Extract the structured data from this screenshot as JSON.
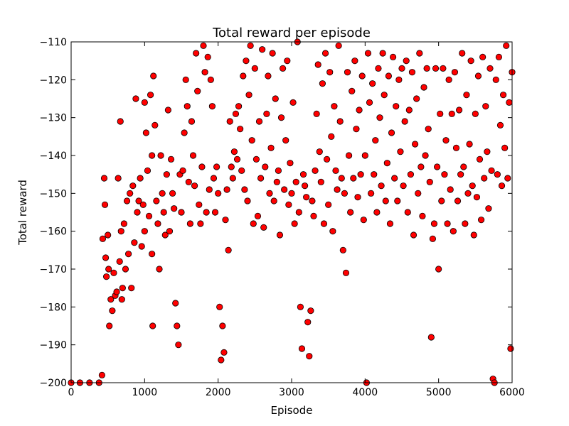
{
  "chart_data": {
    "type": "scatter",
    "title": "Total reward per episode",
    "xlabel": "Episode",
    "ylabel": "Total reward",
    "xlim": [
      0,
      6000
    ],
    "ylim": [
      -200,
      -110
    ],
    "xticks": [
      0,
      1000,
      2000,
      3000,
      4000,
      5000,
      6000
    ],
    "xtick_labels": [
      "0",
      "1000",
      "2000",
      "3000",
      "4000",
      "5000",
      "6000"
    ],
    "yticks": [
      -200,
      -190,
      -180,
      -170,
      -160,
      -150,
      -140,
      -130,
      -120,
      -110
    ],
    "ytick_labels": [
      "−200",
      "−190",
      "−180",
      "−170",
      "−160",
      "−150",
      "−140",
      "−130",
      "−120",
      "−110"
    ],
    "grid": false,
    "marker": "circle",
    "marker_color": "#ff0000",
    "marker_edge_color": "#000000",
    "series": [
      {
        "points": [
          [
            0,
            -200
          ],
          [
            120,
            -200
          ],
          [
            250,
            -200
          ],
          [
            380,
            -200
          ],
          [
            420,
            -198
          ],
          [
            430,
            -162
          ],
          [
            450,
            -146
          ],
          [
            460,
            -153
          ],
          [
            470,
            -167
          ],
          [
            480,
            -172
          ],
          [
            500,
            -161
          ],
          [
            510,
            -170
          ],
          [
            520,
            -185
          ],
          [
            540,
            -178
          ],
          [
            560,
            -181
          ],
          [
            580,
            -171
          ],
          [
            600,
            -177
          ],
          [
            620,
            -176
          ],
          [
            640,
            -146
          ],
          [
            660,
            -168
          ],
          [
            670,
            -131
          ],
          [
            680,
            -160
          ],
          [
            690,
            -178
          ],
          [
            700,
            -175
          ],
          [
            720,
            -158
          ],
          [
            740,
            -170
          ],
          [
            760,
            -152
          ],
          [
            780,
            -166
          ],
          [
            800,
            -150
          ],
          [
            820,
            -175
          ],
          [
            840,
            -148
          ],
          [
            860,
            -163
          ],
          [
            880,
            -125
          ],
          [
            900,
            -155
          ],
          [
            920,
            -152
          ],
          [
            940,
            -146
          ],
          [
            960,
            -164
          ],
          [
            980,
            -153
          ],
          [
            1000,
            -160
          ],
          [
            1000,
            -126
          ],
          [
            1020,
            -134
          ],
          [
            1040,
            -144
          ],
          [
            1060,
            -156
          ],
          [
            1080,
            -124
          ],
          [
            1100,
            -166
          ],
          [
            1100,
            -140
          ],
          [
            1110,
            -185
          ],
          [
            1120,
            -119
          ],
          [
            1140,
            -132
          ],
          [
            1160,
            -152
          ],
          [
            1180,
            -158
          ],
          [
            1200,
            -170
          ],
          [
            1220,
            -140
          ],
          [
            1240,
            -150
          ],
          [
            1260,
            -155
          ],
          [
            1280,
            -161
          ],
          [
            1300,
            -145
          ],
          [
            1320,
            -128
          ],
          [
            1340,
            -160
          ],
          [
            1360,
            -141
          ],
          [
            1380,
            -150
          ],
          [
            1400,
            -154
          ],
          [
            1420,
            -179
          ],
          [
            1440,
            -185
          ],
          [
            1460,
            -190
          ],
          [
            1480,
            -145
          ],
          [
            1500,
            -155
          ],
          [
            1520,
            -144
          ],
          [
            1540,
            -134
          ],
          [
            1560,
            -120
          ],
          [
            1580,
            -127
          ],
          [
            1600,
            -147
          ],
          [
            1620,
            -158
          ],
          [
            1640,
            -131
          ],
          [
            1660,
            -140
          ],
          [
            1680,
            -148
          ],
          [
            1700,
            -113
          ],
          [
            1720,
            -123
          ],
          [
            1740,
            -153
          ],
          [
            1760,
            -158
          ],
          [
            1780,
            -143
          ],
          [
            1800,
            -111
          ],
          [
            1820,
            -118
          ],
          [
            1840,
            -155
          ],
          [
            1860,
            -114
          ],
          [
            1880,
            -149
          ],
          [
            1900,
            -120
          ],
          [
            1920,
            -127
          ],
          [
            1940,
            -146
          ],
          [
            1960,
            -155
          ],
          [
            1980,
            -143
          ],
          [
            2000,
            -150
          ],
          [
            2020,
            -180
          ],
          [
            2040,
            -194
          ],
          [
            2060,
            -185
          ],
          [
            2080,
            -192
          ],
          [
            2100,
            -157
          ],
          [
            2120,
            -149
          ],
          [
            2140,
            -165
          ],
          [
            2160,
            -131
          ],
          [
            2180,
            -143
          ],
          [
            2200,
            -146
          ],
          [
            2220,
            -139
          ],
          [
            2240,
            -129
          ],
          [
            2260,
            -141
          ],
          [
            2280,
            -127
          ],
          [
            2300,
            -133
          ],
          [
            2320,
            -144
          ],
          [
            2340,
            -119
          ],
          [
            2360,
            -149
          ],
          [
            2380,
            -115
          ],
          [
            2400,
            -152
          ],
          [
            2420,
            -124
          ],
          [
            2440,
            -111
          ],
          [
            2460,
            -136
          ],
          [
            2480,
            -158
          ],
          [
            2500,
            -117
          ],
          [
            2520,
            -141
          ],
          [
            2540,
            -156
          ],
          [
            2560,
            -131
          ],
          [
            2580,
            -146
          ],
          [
            2600,
            -112
          ],
          [
            2620,
            -159
          ],
          [
            2640,
            -143
          ],
          [
            2660,
            -129
          ],
          [
            2680,
            -119
          ],
          [
            2700,
            -150
          ],
          [
            2720,
            -138
          ],
          [
            2740,
            -113
          ],
          [
            2760,
            -152
          ],
          [
            2780,
            -125
          ],
          [
            2800,
            -147
          ],
          [
            2820,
            -144
          ],
          [
            2840,
            -161
          ],
          [
            2860,
            -130
          ],
          [
            2880,
            -117
          ],
          [
            2900,
            -149
          ],
          [
            2920,
            -136
          ],
          [
            2940,
            -115
          ],
          [
            2960,
            -153
          ],
          [
            2980,
            -142
          ],
          [
            3000,
            -150
          ],
          [
            3020,
            -126
          ],
          [
            3040,
            -158
          ],
          [
            3060,
            -147
          ],
          [
            3080,
            -110
          ],
          [
            3100,
            -155
          ],
          [
            3120,
            -180
          ],
          [
            3140,
            -191
          ],
          [
            3160,
            -145
          ],
          [
            3180,
            -148
          ],
          [
            3200,
            -151
          ],
          [
            3220,
            -184
          ],
          [
            3240,
            -193
          ],
          [
            3260,
            -181
          ],
          [
            3280,
            -152
          ],
          [
            3300,
            -156
          ],
          [
            3320,
            -144
          ],
          [
            3340,
            -129
          ],
          [
            3360,
            -116
          ],
          [
            3380,
            -139
          ],
          [
            3400,
            -147
          ],
          [
            3420,
            -121
          ],
          [
            3440,
            -158
          ],
          [
            3460,
            -113
          ],
          [
            3480,
            -141
          ],
          [
            3500,
            -153
          ],
          [
            3520,
            -118
          ],
          [
            3540,
            -135
          ],
          [
            3560,
            -160
          ],
          [
            3580,
            -127
          ],
          [
            3600,
            -144
          ],
          [
            3620,
            -149
          ],
          [
            3640,
            -111
          ],
          [
            3660,
            -131
          ],
          [
            3680,
            -146
          ],
          [
            3700,
            -165
          ],
          [
            3720,
            -150
          ],
          [
            3740,
            -171
          ],
          [
            3760,
            -118
          ],
          [
            3780,
            -140
          ],
          [
            3800,
            -155
          ],
          [
            3820,
            -123
          ],
          [
            3840,
            -146
          ],
          [
            3860,
            -115
          ],
          [
            3880,
            -133
          ],
          [
            3900,
            -151
          ],
          [
            3920,
            -128
          ],
          [
            3940,
            -145
          ],
          [
            3960,
            -119
          ],
          [
            3980,
            -157
          ],
          [
            4000,
            -140
          ],
          [
            4020,
            -200
          ],
          [
            4040,
            -113
          ],
          [
            4060,
            -126
          ],
          [
            4080,
            -150
          ],
          [
            4100,
            -121
          ],
          [
            4120,
            -145
          ],
          [
            4140,
            -136
          ],
          [
            4160,
            -155
          ],
          [
            4180,
            -117
          ],
          [
            4200,
            -130
          ],
          [
            4220,
            -148
          ],
          [
            4240,
            -113
          ],
          [
            4260,
            -124
          ],
          [
            4280,
            -152
          ],
          [
            4300,
            -142
          ],
          [
            4320,
            -119
          ],
          [
            4340,
            -158
          ],
          [
            4360,
            -134
          ],
          [
            4380,
            -114
          ],
          [
            4400,
            -146
          ],
          [
            4420,
            -127
          ],
          [
            4440,
            -152
          ],
          [
            4460,
            -120
          ],
          [
            4480,
            -139
          ],
          [
            4500,
            -117
          ],
          [
            4520,
            -148
          ],
          [
            4540,
            -131
          ],
          [
            4560,
            -115
          ],
          [
            4580,
            -155
          ],
          [
            4600,
            -128
          ],
          [
            4620,
            -145
          ],
          [
            4640,
            -118
          ],
          [
            4660,
            -161
          ],
          [
            4680,
            -137
          ],
          [
            4700,
            -125
          ],
          [
            4720,
            -150
          ],
          [
            4740,
            -113
          ],
          [
            4760,
            -143
          ],
          [
            4780,
            -156
          ],
          [
            4800,
            -122
          ],
          [
            4820,
            -140
          ],
          [
            4840,
            -117
          ],
          [
            4860,
            -133
          ],
          [
            4880,
            -147
          ],
          [
            4900,
            -188
          ],
          [
            4920,
            -162
          ],
          [
            4940,
            -158
          ],
          [
            4960,
            -117
          ],
          [
            4980,
            -143
          ],
          [
            5000,
            -170
          ],
          [
            5020,
            -129
          ],
          [
            5040,
            -152
          ],
          [
            5060,
            -117
          ],
          [
            5080,
            -145
          ],
          [
            5100,
            -136
          ],
          [
            5120,
            -158
          ],
          [
            5140,
            -120
          ],
          [
            5160,
            -149
          ],
          [
            5180,
            -129
          ],
          [
            5200,
            -160
          ],
          [
            5220,
            -118
          ],
          [
            5240,
            -138
          ],
          [
            5260,
            -152
          ],
          [
            5280,
            -128
          ],
          [
            5300,
            -145
          ],
          [
            5320,
            -113
          ],
          [
            5340,
            -143
          ],
          [
            5360,
            -158
          ],
          [
            5380,
            -124
          ],
          [
            5400,
            -150
          ],
          [
            5420,
            -137
          ],
          [
            5440,
            -115
          ],
          [
            5460,
            -148
          ],
          [
            5480,
            -161
          ],
          [
            5500,
            -129
          ],
          [
            5520,
            -151
          ],
          [
            5540,
            -119
          ],
          [
            5560,
            -141
          ],
          [
            5580,
            -157
          ],
          [
            5600,
            -114
          ],
          [
            5620,
            -146
          ],
          [
            5640,
            -127
          ],
          [
            5660,
            -139
          ],
          [
            5680,
            -154
          ],
          [
            5700,
            -117
          ],
          [
            5720,
            -144
          ],
          [
            5740,
            -199
          ],
          [
            5760,
            -200
          ],
          [
            5780,
            -120
          ],
          [
            5800,
            -145
          ],
          [
            5820,
            -114
          ],
          [
            5840,
            -132
          ],
          [
            5860,
            -148
          ],
          [
            5880,
            -124
          ],
          [
            5900,
            -138
          ],
          [
            5920,
            -111
          ],
          [
            5940,
            -146
          ],
          [
            5960,
            -126
          ],
          [
            5980,
            -191
          ],
          [
            6000,
            -118
          ]
        ]
      }
    ]
  }
}
